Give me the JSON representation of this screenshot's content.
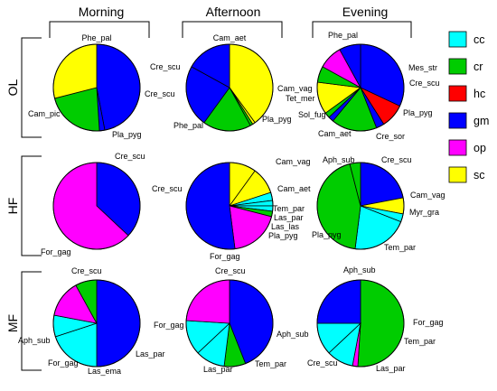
{
  "chart_data": {
    "type": "pie",
    "columns": [
      "Morning",
      "Afternoon",
      "Evening"
    ],
    "rows": [
      "OL",
      "HF",
      "MF"
    ],
    "legend": {
      "placement": "right",
      "entries": [
        {
          "key": "cc",
          "label": "cc",
          "color": "#00FFFF"
        },
        {
          "key": "cr",
          "label": "cr",
          "color": "#00CC00"
        },
        {
          "key": "hc",
          "label": "hc",
          "color": "#FF0000"
        },
        {
          "key": "gm",
          "label": "gm",
          "color": "#0000FF"
        },
        {
          "key": "op",
          "label": "op",
          "color": "#FF00FF"
        },
        {
          "key": "sc",
          "label": "sc",
          "color": "#FFFF00"
        }
      ]
    },
    "pies": [
      {
        "row": "OL",
        "col": "Morning",
        "slices": [
          {
            "label": "Phe_pal",
            "group": "gm",
            "value": 47
          },
          {
            "label": "Cre_scu",
            "group": "gm",
            "value": 2
          },
          {
            "label": "Pla_pyg",
            "group": "cr",
            "value": 22
          },
          {
            "label": "Cam_pic",
            "group": "sc",
            "value": 29
          }
        ]
      },
      {
        "row": "OL",
        "col": "Afternoon",
        "slices": [
          {
            "label": "Cam_aet",
            "group": "sc",
            "value": 40
          },
          {
            "label": "Cam_vag",
            "group": "sc",
            "value": 1
          },
          {
            "label": "",
            "group": "cr",
            "value": 1
          },
          {
            "label": "Pla_pyg",
            "group": "cr",
            "value": 18
          },
          {
            "label": "Phe_pal",
            "group": "gm",
            "value": 23
          },
          {
            "label": "Cre_scu",
            "group": "gm",
            "value": 17
          }
        ]
      },
      {
        "row": "OL",
        "col": "Evening",
        "slices": [
          {
            "label": "Phe_pal",
            "group": "gm",
            "value": 32
          },
          {
            "label": "Mes_str",
            "group": "hc",
            "value": 9
          },
          {
            "label": "Cre_scu",
            "group": "gm",
            "value": 3
          },
          {
            "label": "Pla_pyg",
            "group": "cr",
            "value": 17
          },
          {
            "label": "Cre_sor",
            "group": "gm",
            "value": 2
          },
          {
            "label": "",
            "group": "cr",
            "value": 2
          },
          {
            "label": "Cam_aet",
            "group": "sc",
            "value": 12
          },
          {
            "label": "Sol_fug",
            "group": "cr",
            "value": 6
          },
          {
            "label": "Tet_mer",
            "group": "op",
            "value": 9
          },
          {
            "label": "",
            "group": "gm",
            "value": 8
          }
        ]
      },
      {
        "row": "HF",
        "col": "Morning",
        "slices": [
          {
            "label": "Cre_scu",
            "group": "gm",
            "value": 37
          },
          {
            "label": "For_gag",
            "group": "op",
            "value": 63
          }
        ]
      },
      {
        "row": "HF",
        "col": "Afternoon",
        "slices": [
          {
            "label": "Cam_vag",
            "group": "sc",
            "value": 10
          },
          {
            "label": "Cam_aet",
            "group": "sc",
            "value": 10
          },
          {
            "label": "Tem_par",
            "group": "cc",
            "value": 3
          },
          {
            "label": "Las_par",
            "group": "cc",
            "value": 2
          },
          {
            "label": "Las_las",
            "group": "cc",
            "value": 2
          },
          {
            "label": "Pla_pyg",
            "group": "cr",
            "value": 2
          },
          {
            "label": "For_gag",
            "group": "op",
            "value": 19
          },
          {
            "label": "Cre_scu",
            "group": "gm",
            "value": 52
          }
        ]
      },
      {
        "row": "HF",
        "col": "Evening",
        "slices": [
          {
            "label": "Cre_scu",
            "group": "gm",
            "value": 22
          },
          {
            "label": "Cam_vag",
            "group": "sc",
            "value": 6
          },
          {
            "label": "Myr_gra",
            "group": "cc",
            "value": 3
          },
          {
            "label": "Tem_par",
            "group": "cc",
            "value": 21
          },
          {
            "label": "Pla_pyg",
            "group": "cr",
            "value": 44
          },
          {
            "label": "Aph_sub",
            "group": "cr",
            "value": 4
          }
        ]
      },
      {
        "row": "MF",
        "col": "Morning",
        "slices": [
          {
            "label": "Cre_scu",
            "group": "gm",
            "value": 50
          },
          {
            "label": "Las_par",
            "group": "cc",
            "value": 20
          },
          {
            "label": "Las_ema",
            "group": "cc",
            "value": 8
          },
          {
            "label": "For_gag",
            "group": "op",
            "value": 14
          },
          {
            "label": "Aph_sub",
            "group": "cr",
            "value": 8
          }
        ]
      },
      {
        "row": "MF",
        "col": "Afternoon",
        "slices": [
          {
            "label": "Cre_scu",
            "group": "gm",
            "value": 44
          },
          {
            "label": "Aph_sub",
            "group": "cr",
            "value": 8
          },
          {
            "label": "Tem_par",
            "group": "cc",
            "value": 11
          },
          {
            "label": "Las_par",
            "group": "cc",
            "value": 13
          },
          {
            "label": "For_gag",
            "group": "op",
            "value": 24
          }
        ]
      },
      {
        "row": "MF",
        "col": "Evening",
        "slices": [
          {
            "label": "Aph_sub",
            "group": "cr",
            "value": 51
          },
          {
            "label": "For_gag",
            "group": "op",
            "value": 2
          },
          {
            "label": "Tem_par",
            "group": "cc",
            "value": 10
          },
          {
            "label": "Las_par",
            "group": "cc",
            "value": 12
          },
          {
            "label": "Cre_scu",
            "group": "gm",
            "value": 25
          }
        ]
      }
    ]
  }
}
